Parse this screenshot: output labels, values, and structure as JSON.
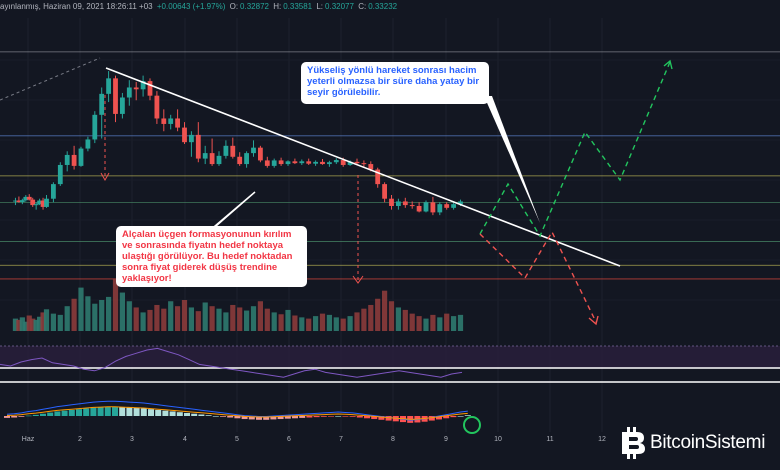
{
  "header": {
    "symbol": "ayınlanmış, Haziran 09, 2021 18:26:11 +03",
    "change": "+0.00643 (+1.97%)",
    "o_label": "O:",
    "o_value": "0.32872",
    "h_label": "H:",
    "h_value": "0.33581",
    "l_label": "L:",
    "l_value": "0.32077",
    "c_label": "C:",
    "c_value": "0.33232"
  },
  "annotations": {
    "uptrend_note": "Yükseliş yönlü hareket sonrası hacim yeterli olmazsa bir süre daha yatay bir seyir görülebilir.",
    "downtrend_note": "Alçalan üçgen formasyonunun kırılım ve sonrasında fiyatın hedef noktaya ulaştığı görülüyor. Bu hedef noktadan sonra fiyat giderek düşüş trendine yaklaşıyor!"
  },
  "logo": {
    "text": "BitcoinSistemi",
    "icon": "bitcoin-b-icon"
  },
  "colors": {
    "up": "#26a69a",
    "down": "#ef5350",
    "background": "#131722",
    "projection_up": "#22c55e",
    "projection_down": "#ef5350"
  },
  "chart_data": {
    "type": "candlestick",
    "title": "",
    "x_ticks": [
      "Haz",
      "2",
      "3",
      "4",
      "5",
      "6",
      "7",
      "8",
      "9",
      "10",
      "11",
      "12"
    ],
    "y_range": [
      0.29,
      0.46
    ],
    "candles": [
      [
        0.3605,
        0.3625,
        0.3585,
        0.361
      ],
      [
        0.361,
        0.3632,
        0.3598,
        0.3602
      ],
      [
        0.3602,
        0.362,
        0.359,
        0.3612
      ],
      [
        0.3612,
        0.364,
        0.3604,
        0.363
      ],
      [
        0.363,
        0.3645,
        0.361,
        0.3615
      ],
      [
        0.3615,
        0.3625,
        0.3575,
        0.3585
      ],
      [
        0.3585,
        0.36,
        0.356,
        0.359
      ],
      [
        0.359,
        0.362,
        0.3585,
        0.361
      ],
      [
        0.361,
        0.3625,
        0.356,
        0.3575
      ],
      [
        0.3575,
        0.364,
        0.357,
        0.362
      ],
      [
        0.362,
        0.371,
        0.36,
        0.37
      ],
      [
        0.37,
        0.382,
        0.369,
        0.3805
      ],
      [
        0.3805,
        0.388,
        0.377,
        0.386
      ],
      [
        0.386,
        0.391,
        0.378,
        0.38
      ],
      [
        0.38,
        0.3905,
        0.3795,
        0.3895
      ],
      [
        0.3895,
        0.396,
        0.388,
        0.3945
      ],
      [
        0.3945,
        0.41,
        0.3925,
        0.408
      ],
      [
        0.408,
        0.423,
        0.395,
        0.4195
      ],
      [
        0.4195,
        0.432,
        0.415,
        0.428
      ],
      [
        0.428,
        0.4295,
        0.404,
        0.4085
      ],
      [
        0.4085,
        0.42,
        0.406,
        0.4175
      ],
      [
        0.4175,
        0.427,
        0.413,
        0.423
      ],
      [
        0.423,
        0.426,
        0.416,
        0.422
      ],
      [
        0.422,
        0.4295,
        0.418,
        0.4265
      ],
      [
        0.4265,
        0.428,
        0.416,
        0.4185
      ],
      [
        0.4185,
        0.421,
        0.403,
        0.406
      ],
      [
        0.406,
        0.411,
        0.399,
        0.403
      ],
      [
        0.403,
        0.408,
        0.4,
        0.406
      ],
      [
        0.406,
        0.411,
        0.399,
        0.401
      ],
      [
        0.401,
        0.404,
        0.392,
        0.393
      ],
      [
        0.393,
        0.399,
        0.385,
        0.397
      ],
      [
        0.397,
        0.404,
        0.382,
        0.384
      ],
      [
        0.384,
        0.391,
        0.381,
        0.387
      ],
      [
        0.387,
        0.395,
        0.38,
        0.381
      ],
      [
        0.381,
        0.388,
        0.38,
        0.3855
      ],
      [
        0.3855,
        0.394,
        0.384,
        0.391
      ],
      [
        0.391,
        0.3955,
        0.384,
        0.385
      ],
      [
        0.385,
        0.3875,
        0.38,
        0.381
      ],
      [
        0.381,
        0.388,
        0.379,
        0.387
      ],
      [
        0.387,
        0.394,
        0.385,
        0.39
      ],
      [
        0.39,
        0.391,
        0.382,
        0.383
      ],
      [
        0.383,
        0.385,
        0.379,
        0.38
      ],
      [
        0.38,
        0.384,
        0.379,
        0.383
      ],
      [
        0.383,
        0.3845,
        0.38,
        0.381
      ],
      [
        0.381,
        0.383,
        0.38,
        0.3825
      ],
      [
        0.3825,
        0.384,
        0.381,
        0.3815
      ],
      [
        0.3815,
        0.3835,
        0.3805,
        0.3825
      ],
      [
        0.3825,
        0.384,
        0.3805,
        0.3812
      ],
      [
        0.3812,
        0.383,
        0.38,
        0.3822
      ],
      [
        0.3822,
        0.3838,
        0.3806,
        0.381
      ],
      [
        0.381,
        0.3828,
        0.3795,
        0.382
      ],
      [
        0.382,
        0.3842,
        0.381,
        0.3832
      ],
      [
        0.3832,
        0.3845,
        0.3795,
        0.3805
      ],
      [
        0.3805,
        0.383,
        0.38,
        0.3822
      ],
      [
        0.3822,
        0.384,
        0.381,
        0.3815
      ],
      [
        0.3815,
        0.383,
        0.379,
        0.381
      ],
      [
        0.381,
        0.3825,
        0.377,
        0.378
      ],
      [
        0.378,
        0.379,
        0.368,
        0.37
      ],
      [
        0.37,
        0.371,
        0.36,
        0.362
      ],
      [
        0.362,
        0.364,
        0.356,
        0.358
      ],
      [
        0.358,
        0.362,
        0.356,
        0.3605
      ],
      [
        0.3605,
        0.3625,
        0.357,
        0.3585
      ],
      [
        0.3585,
        0.3605,
        0.3565,
        0.358
      ],
      [
        0.358,
        0.36,
        0.3545,
        0.355
      ],
      [
        0.355,
        0.361,
        0.3545,
        0.36
      ],
      [
        0.36,
        0.363,
        0.353,
        0.3545
      ],
      [
        0.3545,
        0.36,
        0.353,
        0.359
      ],
      [
        0.359,
        0.36,
        0.356,
        0.357
      ],
      [
        0.357,
        0.3605,
        0.356,
        0.359
      ],
      [
        0.359,
        0.3615,
        0.358,
        0.3605
      ]
    ],
    "candle_x": [
      3,
      6,
      9,
      12,
      15,
      18,
      21,
      24,
      27,
      30,
      36,
      42,
      48,
      54,
      60,
      66,
      72,
      78,
      84,
      90,
      96,
      102,
      108,
      114,
      120,
      126,
      132,
      138,
      144,
      150,
      156,
      162,
      168,
      174,
      180,
      186,
      192,
      198,
      204,
      210,
      216,
      222,
      228,
      234,
      240,
      246,
      252,
      258,
      264,
      270,
      276,
      282,
      288,
      294,
      300,
      306,
      312,
      318,
      324,
      330,
      336,
      342,
      348,
      354,
      360,
      366,
      372,
      378,
      384,
      390
    ],
    "volume_pct": [
      20,
      18,
      22,
      15,
      25,
      20,
      18,
      23,
      30,
      35,
      28,
      26,
      40,
      52,
      70,
      56,
      44,
      50,
      55,
      85,
      62,
      48,
      38,
      30,
      34,
      42,
      36,
      48,
      40,
      50,
      38,
      32,
      46,
      40,
      36,
      30,
      42,
      38,
      33,
      40,
      48,
      36,
      30,
      27,
      34,
      25,
      22,
      20,
      24,
      28,
      26,
      22,
      20,
      24,
      30,
      36,
      42,
      52,
      65,
      48,
      38,
      34,
      28,
      24,
      20,
      26,
      22,
      28,
      24,
      26
    ],
    "horizontal_levels": [
      0.4425,
      0.3965,
      0.3745,
      0.36,
      0.3385,
      0.3255,
      0.318
    ],
    "trendline": [
      [
        0.4285,
        0.352
      ]
    ],
    "rsi": [
      52,
      50,
      55,
      58,
      60,
      54,
      52,
      50,
      46,
      44,
      48,
      56,
      62,
      66,
      70,
      72,
      68,
      64,
      58,
      52,
      50,
      48,
      46,
      44,
      42,
      40,
      38,
      36,
      40,
      44,
      46,
      42,
      40,
      38,
      36,
      38,
      40,
      42,
      44,
      42,
      40,
      38,
      36,
      40,
      42
    ],
    "macd_hist": [
      -0.05,
      -0.04,
      -0.02,
      0.01,
      0.03,
      0.06,
      0.09,
      0.12,
      0.14,
      0.16,
      0.18,
      0.2,
      0.22,
      0.23,
      0.24,
      0.24,
      0.23,
      0.22,
      0.21,
      0.2,
      0.18,
      0.16,
      0.14,
      0.12,
      0.1,
      0.08,
      0.06,
      0.04,
      0.02,
      0.0,
      -0.02,
      -0.04,
      -0.06,
      -0.08,
      -0.09,
      -0.1,
      -0.1,
      -0.09,
      -0.08,
      -0.07,
      -0.06,
      -0.05,
      -0.04,
      -0.03,
      -0.02,
      -0.01,
      0.0,
      -0.01,
      -0.02,
      -0.04,
      -0.06,
      -0.08,
      -0.1,
      -0.12,
      -0.14,
      -0.16,
      -0.18,
      -0.17,
      -0.15,
      -0.12,
      -0.09,
      -0.06,
      -0.03,
      0.0,
      0.02
    ]
  }
}
